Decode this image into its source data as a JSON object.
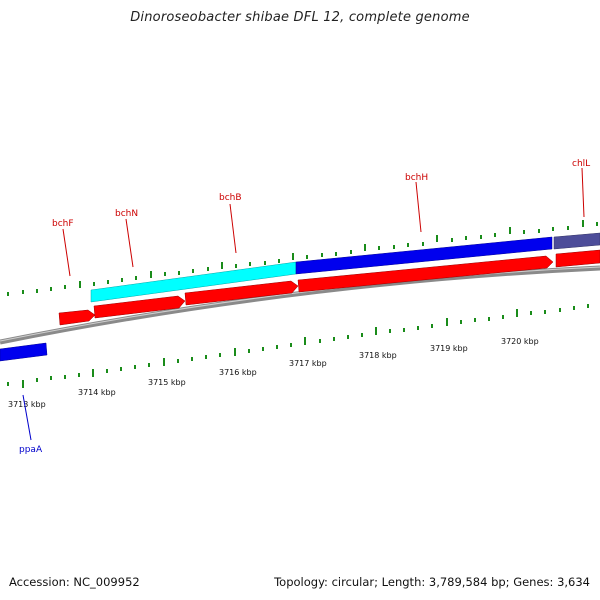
{
  "title": "Dinoroseobacter shibae DFL 12, complete genome",
  "footer": {
    "accession": "Accession: NC_009952",
    "summary": "Topology: circular; Length: 3,789,584 bp; Genes: 3,634"
  },
  "colors": {
    "backbone": "#8a8a8a",
    "red_gene": "#ff0000",
    "blue_gene": "#0000ee",
    "cyan_gene": "#00ffff",
    "slate_gene": "#4d4d99",
    "tick": "#1a8c1a",
    "label_red": "#cc0000",
    "label_blue": "#0000cc"
  },
  "scale": {
    "labels": [
      "3713 kbp",
      "3714 kbp",
      "3715 kbp",
      "3716 kbp",
      "3717 kbp",
      "3718 kbp",
      "3719 kbp",
      "3720 kbp"
    ]
  },
  "gene_labels": {
    "bchF": "bchF",
    "bchN": "bchN",
    "bchB": "bchB",
    "bchH": "bchH",
    "chlL": "chlL",
    "ppaA": "ppaA"
  }
}
